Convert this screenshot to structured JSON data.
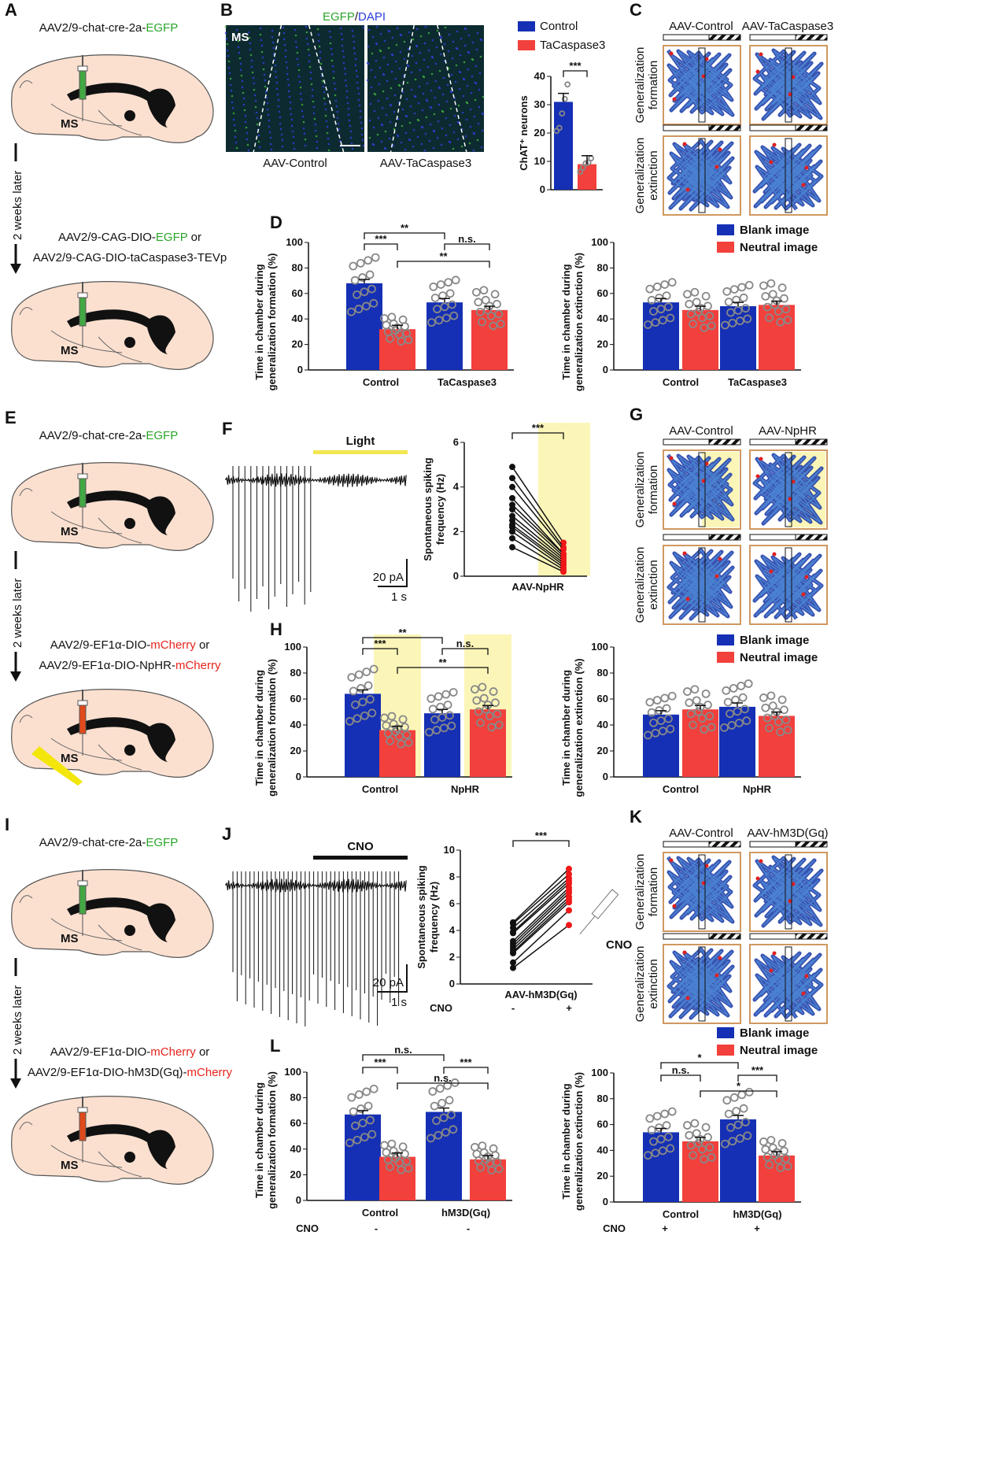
{
  "colors": {
    "blank": "#1530b4",
    "neutral": "#f2403c",
    "egfp": "#2aa52a",
    "mcherry": "#e8231c",
    "light": "#fbf6b8",
    "trace": "#111111"
  },
  "panels": {
    "A": {
      "label": "A",
      "top_text": [
        "AAV2/9-chat-cre-2a-",
        "EGFP"
      ],
      "region": "MS",
      "wait": "2 weeks later",
      "line1": [
        "AAV2/9-CAG-DIO-",
        "EGFP",
        " or"
      ],
      "line2": "AAV2/9-CAG-DIO-taCaspase3-TEVp"
    },
    "B": {
      "label": "B",
      "stain": [
        "EGFP",
        "/",
        "DAPI"
      ],
      "region": "MS",
      "captions": [
        "AAV-Control",
        "AAV-TaCaspase3"
      ],
      "legend": [
        "Control",
        "TaCaspase3"
      ]
    },
    "C": {
      "label": "C",
      "columns": [
        "AAV-Control",
        "AAV-TaCaspase3"
      ],
      "rows": [
        [
          "Generalization",
          "formation"
        ],
        [
          "Generalization",
          "extinction"
        ]
      ]
    },
    "D": {
      "label": "D",
      "legend": [
        "Blank image",
        "Neutral image"
      ]
    },
    "E": {
      "label": "E",
      "top_text": [
        "AAV2/9-chat-cre-2a-",
        "EGFP"
      ],
      "region": "MS",
      "wait": "2 weeks later",
      "line1": [
        "AAV2/9-EF1α-DIO-",
        "mCherry",
        " or"
      ],
      "line2": [
        "AAV2/9-EF1α-DIO-NpHR-",
        "mCherry"
      ]
    },
    "F": {
      "label": "F",
      "bar_label": "Light",
      "scale_y": "20 pA",
      "scale_x": "1 s"
    },
    "G": {
      "label": "G",
      "columns": [
        "AAV-Control",
        "AAV-NpHR"
      ],
      "rows": [
        [
          "Generalization",
          "formation"
        ],
        [
          "Generalization",
          "extinction"
        ]
      ]
    },
    "H": {
      "label": "H",
      "legend": [
        "Blank image",
        "Neutral image"
      ]
    },
    "I": {
      "label": "I",
      "top_text": [
        "AAV2/9-chat-cre-2a-",
        "EGFP"
      ],
      "region": "MS",
      "wait": "2 weeks later",
      "line1": [
        "AAV2/9-EF1α-DIO-",
        "mCherry",
        " or"
      ],
      "line2": [
        "AAV2/9-EF1α-DIO-hM3D(Gq)-",
        "mCherry"
      ]
    },
    "J": {
      "label": "J",
      "bar_label": "CNO",
      "scale_y": "20 pA",
      "scale_x": "1 s"
    },
    "K": {
      "label": "K",
      "columns": [
        "AAV-Control",
        "AAV-hM3D(Gq)"
      ],
      "rows": [
        [
          "Generalization",
          "formation"
        ],
        [
          "Generalization",
          "extinction"
        ]
      ],
      "syringe_label": "CNO"
    },
    "L": {
      "label": "L",
      "legend": [
        "Blank image",
        "Neutral image"
      ],
      "cno_label": "CNO",
      "cno_left": [
        "-",
        "-"
      ],
      "cno_right": [
        "+",
        "+"
      ]
    }
  },
  "chart_data": [
    {
      "id": "B",
      "type": "bar",
      "ylabel": "ChAT⁺ neurons",
      "ylim": [
        0,
        40
      ],
      "yticks": [
        "0",
        "10",
        "20",
        "30",
        "40"
      ],
      "categories": [
        "Control",
        "TaCaspase3"
      ],
      "values": [
        31,
        9
      ],
      "brackets": [
        {
          "bars": [
            0,
            1
          ],
          "label": "***"
        }
      ]
    },
    {
      "id": "D-left",
      "type": "bar",
      "ylabel": [
        "Time in chamber during",
        "generalization formation (%)"
      ],
      "ylim": [
        0,
        100
      ],
      "yticks": [
        "0",
        "20",
        "40",
        "60",
        "80",
        "100"
      ],
      "groups": [
        "Control",
        "TaCaspase3"
      ],
      "series": [
        {
          "name": "Blank image",
          "values": [
            68,
            53
          ]
        },
        {
          "name": "Neutral image",
          "values": [
            32,
            47
          ]
        }
      ],
      "brackets": [
        {
          "bars": [
            0,
            2
          ],
          "label": "**"
        },
        {
          "bars": [
            0,
            1
          ],
          "label": "***"
        },
        {
          "bars": [
            2,
            3
          ],
          "label": "n.s."
        },
        {
          "bars": [
            1,
            3
          ],
          "label": "**"
        }
      ]
    },
    {
      "id": "D-right",
      "type": "bar",
      "ylabel": [
        "Time in chamber during",
        "generalization extinction (%)"
      ],
      "ylim": [
        0,
        100
      ],
      "yticks": [
        "0",
        "20",
        "40",
        "60",
        "80",
        "100"
      ],
      "groups": [
        "Control",
        "TaCaspase3"
      ],
      "series": [
        {
          "name": "Blank image",
          "values": [
            53,
            50
          ]
        },
        {
          "name": "Neutral image",
          "values": [
            47,
            51
          ]
        }
      ],
      "brackets": []
    },
    {
      "id": "F-pair",
      "type": "line",
      "ylabel": [
        "Spontaneous spiking",
        "frequency (Hz)"
      ],
      "ylim": [
        0,
        6
      ],
      "yticks": [
        "0",
        "2",
        "4",
        "6"
      ],
      "xlabel": "AAV-NpHR",
      "before": [
        4.9,
        4.4,
        4.0,
        3.5,
        3.2,
        3.0,
        2.7,
        2.5,
        2.3,
        2.2,
        2.0,
        1.7,
        1.3
      ],
      "after": [
        1.5,
        1.3,
        1.2,
        1.0,
        1.0,
        0.9,
        0.8,
        0.7,
        0.6,
        0.5,
        0.4,
        0.3,
        0.2
      ],
      "brackets": [
        {
          "bars": [
            0,
            1
          ],
          "label": "***"
        }
      ]
    },
    {
      "id": "H-left",
      "type": "bar",
      "ylabel": [
        "Time in chamber during",
        "generalization formation (%)"
      ],
      "ylim": [
        0,
        100
      ],
      "yticks": [
        "0",
        "20",
        "40",
        "60",
        "80",
        "100"
      ],
      "groups": [
        "Control",
        "NpHR"
      ],
      "series": [
        {
          "name": "Blank image",
          "values": [
            64,
            49
          ]
        },
        {
          "name": "Neutral image",
          "values": [
            36,
            52
          ]
        }
      ],
      "brackets": [
        {
          "bars": [
            0,
            2
          ],
          "label": "**"
        },
        {
          "bars": [
            0,
            1
          ],
          "label": "***"
        },
        {
          "bars": [
            2,
            3
          ],
          "label": "n.s."
        },
        {
          "bars": [
            1,
            3
          ],
          "label": "**"
        }
      ]
    },
    {
      "id": "H-right",
      "type": "bar",
      "ylabel": [
        "Time in chamber during",
        "generalization extinction (%)"
      ],
      "ylim": [
        0,
        100
      ],
      "yticks": [
        "0",
        "20",
        "40",
        "60",
        "80",
        "100"
      ],
      "groups": [
        "Control",
        "NpHR"
      ],
      "series": [
        {
          "name": "Blank image",
          "values": [
            48,
            54
          ]
        },
        {
          "name": "Neutral image",
          "values": [
            52,
            47
          ]
        }
      ],
      "brackets": []
    },
    {
      "id": "J-pair",
      "type": "line",
      "ylabel": [
        "Spontaneous spiking",
        "frequency (Hz)"
      ],
      "ylim": [
        0,
        10
      ],
      "yticks": [
        "0",
        "2",
        "4",
        "6",
        "8",
        "10"
      ],
      "xlabel": "AAV-hM3D(Gq)",
      "cno_label": "CNO",
      "cno": [
        "-",
        "+"
      ],
      "before": [
        4.6,
        4.5,
        4.2,
        3.9,
        3.8,
        3.2,
        3.0,
        2.8,
        2.6,
        2.4,
        2.3,
        1.6,
        1.2
      ],
      "after": [
        8.6,
        8.2,
        7.9,
        7.7,
        7.5,
        7.2,
        7.0,
        6.8,
        6.5,
        6.3,
        6.1,
        5.5,
        4.4
      ],
      "brackets": [
        {
          "bars": [
            0,
            1
          ],
          "label": "***"
        }
      ]
    },
    {
      "id": "L-left",
      "type": "bar",
      "ylabel": [
        "Time in chamber during",
        "generalization formation (%)"
      ],
      "ylim": [
        0,
        100
      ],
      "yticks": [
        "0",
        "20",
        "40",
        "60",
        "80",
        "100"
      ],
      "groups": [
        "Control",
        "hM3D(Gq)"
      ],
      "series": [
        {
          "name": "Blank image",
          "values": [
            67,
            69
          ]
        },
        {
          "name": "Neutral image",
          "values": [
            34,
            32
          ]
        }
      ],
      "brackets": [
        {
          "bars": [
            0,
            2
          ],
          "label": "n.s."
        },
        {
          "bars": [
            0,
            1
          ],
          "label": "***"
        },
        {
          "bars": [
            2,
            3
          ],
          "label": "***"
        },
        {
          "bars": [
            1,
            3
          ],
          "label": "n.s."
        }
      ]
    },
    {
      "id": "L-right",
      "type": "bar",
      "ylabel": [
        "Time in chamber during",
        "generalization extinction (%)"
      ],
      "ylim": [
        0,
        100
      ],
      "yticks": [
        "0",
        "20",
        "40",
        "60",
        "80",
        "100"
      ],
      "groups": [
        "Control",
        "hM3D(Gq)"
      ],
      "series": [
        {
          "name": "Blank image",
          "values": [
            54,
            64
          ]
        },
        {
          "name": "Neutral image",
          "values": [
            47,
            36
          ]
        }
      ],
      "brackets": [
        {
          "bars": [
            0,
            2
          ],
          "label": "*"
        },
        {
          "bars": [
            0,
            1
          ],
          "label": "n.s."
        },
        {
          "bars": [
            2,
            3
          ],
          "label": "***"
        },
        {
          "bars": [
            1,
            3
          ],
          "label": "*"
        }
      ]
    }
  ]
}
